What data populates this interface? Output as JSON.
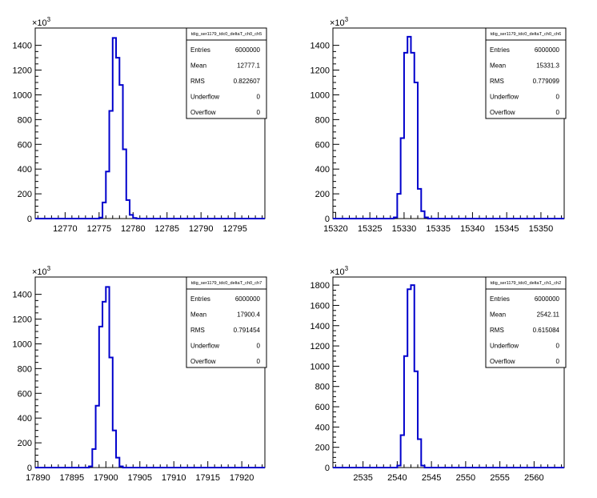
{
  "chart_data": [
    {
      "type": "histogram",
      "title": "tdig_ser1179_tdc0_deltaT_ch0_ch5",
      "y_multiplier": "×10",
      "y_multiplier_exp": "3",
      "xlim": [
        12765.6,
        12799.4
      ],
      "ylim": [
        0,
        1540
      ],
      "xticks": [
        12770,
        12775,
        12780,
        12785,
        12790,
        12795
      ],
      "yticks": [
        0,
        200,
        400,
        600,
        800,
        1000,
        1200,
        1400
      ],
      "bin_width": 0.5,
      "bins": [
        {
          "x": 12775.0,
          "y": 8
        },
        {
          "x": 12775.5,
          "y": 130
        },
        {
          "x": 12776.0,
          "y": 380
        },
        {
          "x": 12776.5,
          "y": 870
        },
        {
          "x": 12777.0,
          "y": 1460
        },
        {
          "x": 12777.5,
          "y": 1300
        },
        {
          "x": 12778.0,
          "y": 1080
        },
        {
          "x": 12778.5,
          "y": 560
        },
        {
          "x": 12779.0,
          "y": 150
        },
        {
          "x": 12779.5,
          "y": 30
        },
        {
          "x": 12780.0,
          "y": 5
        }
      ],
      "stats": [
        {
          "label": "Entries",
          "value": "6000000"
        },
        {
          "label": "Mean",
          "value": "12777.1"
        },
        {
          "label": "RMS",
          "value": "0.822607"
        },
        {
          "label": "Underflow",
          "value": "0"
        },
        {
          "label": "Overflow",
          "value": "0"
        }
      ],
      "color": "#0000cc"
    },
    {
      "type": "histogram",
      "title": "tdig_ser1179_tdc0_deltaT_ch0_ch6",
      "y_multiplier": "×10",
      "y_multiplier_exp": "3",
      "xlim": [
        15319.6,
        15353.4
      ],
      "ylim": [
        0,
        1540
      ],
      "xticks": [
        15320,
        15325,
        15330,
        15335,
        15340,
        15345,
        15350
      ],
      "yticks": [
        0,
        200,
        400,
        600,
        800,
        1000,
        1200,
        1400
      ],
      "bin_width": 0.5,
      "bins": [
        {
          "x": 15328.5,
          "y": 10
        },
        {
          "x": 15329.0,
          "y": 200
        },
        {
          "x": 15329.5,
          "y": 650
        },
        {
          "x": 15330.0,
          "y": 1340
        },
        {
          "x": 15330.5,
          "y": 1470
        },
        {
          "x": 15331.0,
          "y": 1340
        },
        {
          "x": 15331.5,
          "y": 1100
        },
        {
          "x": 15332.0,
          "y": 240
        },
        {
          "x": 15332.5,
          "y": 60
        },
        {
          "x": 15333.0,
          "y": 10
        }
      ],
      "stats": [
        {
          "label": "Entries",
          "value": "6000000"
        },
        {
          "label": "Mean",
          "value": "15331.3"
        },
        {
          "label": "RMS",
          "value": "0.779099"
        },
        {
          "label": "Underflow",
          "value": "0"
        },
        {
          "label": "Overflow",
          "value": "0"
        }
      ],
      "color": "#0000cc"
    },
    {
      "type": "histogram",
      "title": "tdig_ser1179_tdc0_deltaT_ch0_ch7",
      "y_multiplier": "×10",
      "y_multiplier_exp": "3",
      "xlim": [
        17889.6,
        17923.4
      ],
      "ylim": [
        0,
        1540
      ],
      "xticks": [
        17890,
        17895,
        17900,
        17905,
        17910,
        17915,
        17920
      ],
      "yticks": [
        0,
        200,
        400,
        600,
        800,
        1000,
        1200,
        1400
      ],
      "bin_width": 0.5,
      "bins": [
        {
          "x": 17897.5,
          "y": 10
        },
        {
          "x": 17898.0,
          "y": 150
        },
        {
          "x": 17898.5,
          "y": 500
        },
        {
          "x": 17899.0,
          "y": 1140
        },
        {
          "x": 17899.5,
          "y": 1340
        },
        {
          "x": 17900.0,
          "y": 1460
        },
        {
          "x": 17900.5,
          "y": 890
        },
        {
          "x": 17901.0,
          "y": 300
        },
        {
          "x": 17901.5,
          "y": 80
        },
        {
          "x": 17902.0,
          "y": 10
        }
      ],
      "stats": [
        {
          "label": "Entries",
          "value": "6000000"
        },
        {
          "label": "Mean",
          "value": "17900.4"
        },
        {
          "label": "RMS",
          "value": "0.791454"
        },
        {
          "label": "Underflow",
          "value": "0"
        },
        {
          "label": "Overflow",
          "value": "0"
        }
      ],
      "color": "#0000cc"
    },
    {
      "type": "histogram",
      "title": "tdig_ser1179_tdc0_deltaT_ch1_ch2",
      "y_multiplier": "×10",
      "y_multiplier_exp": "3",
      "xlim": [
        2530.6,
        2564.4
      ],
      "ylim": [
        0,
        1880
      ],
      "xticks": [
        2535,
        2540,
        2545,
        2550,
        2555,
        2560
      ],
      "yticks": [
        0,
        200,
        400,
        600,
        800,
        1000,
        1200,
        1400,
        1600,
        1800
      ],
      "bin_width": 0.5,
      "bins": [
        {
          "x": 2540.0,
          "y": 20
        },
        {
          "x": 2540.5,
          "y": 320
        },
        {
          "x": 2541.0,
          "y": 1100
        },
        {
          "x": 2541.5,
          "y": 1760
        },
        {
          "x": 2542.0,
          "y": 1800
        },
        {
          "x": 2542.5,
          "y": 950
        },
        {
          "x": 2543.0,
          "y": 280
        },
        {
          "x": 2543.5,
          "y": 20
        }
      ],
      "stats": [
        {
          "label": "Entries",
          "value": "6000000"
        },
        {
          "label": "Mean",
          "value": "2542.11"
        },
        {
          "label": "RMS",
          "value": "0.615084"
        },
        {
          "label": "Underflow",
          "value": "0"
        },
        {
          "label": "Overflow",
          "value": "0"
        }
      ],
      "color": "#0000cc"
    }
  ]
}
